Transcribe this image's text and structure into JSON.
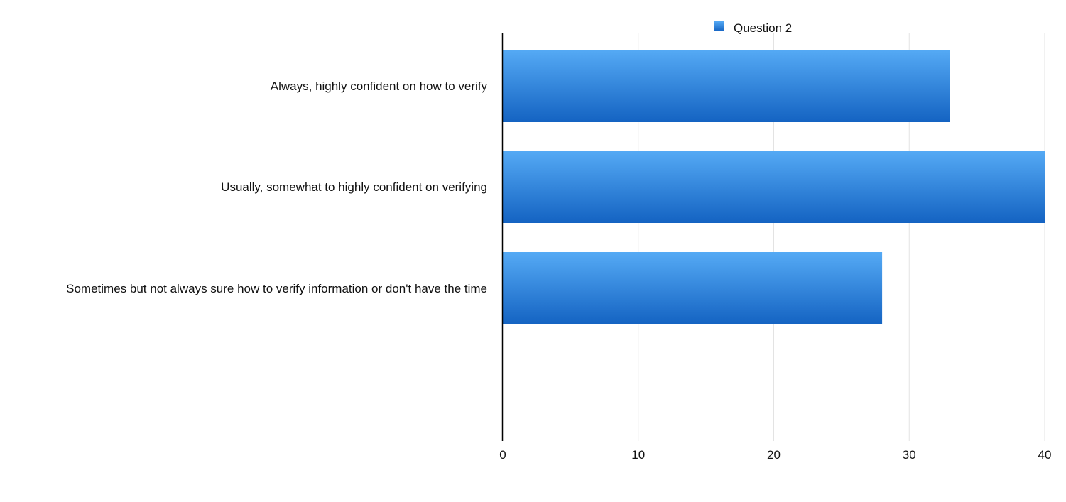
{
  "chart_data": {
    "type": "bar",
    "orientation": "horizontal",
    "categories": [
      "Always, highly confident on how to verify",
      "Usually, somewhat to highly confident on verifying",
      "Sometimes but not always sure how to verify information or don't have the time"
    ],
    "series": [
      {
        "name": "Question 2",
        "values": [
          33,
          40,
          28
        ],
        "color": "#2f86dd"
      }
    ],
    "xlim": [
      0,
      40
    ],
    "xticks": [
      0,
      10,
      20,
      30,
      40
    ],
    "legend_position": "top",
    "grid": "vertical"
  }
}
